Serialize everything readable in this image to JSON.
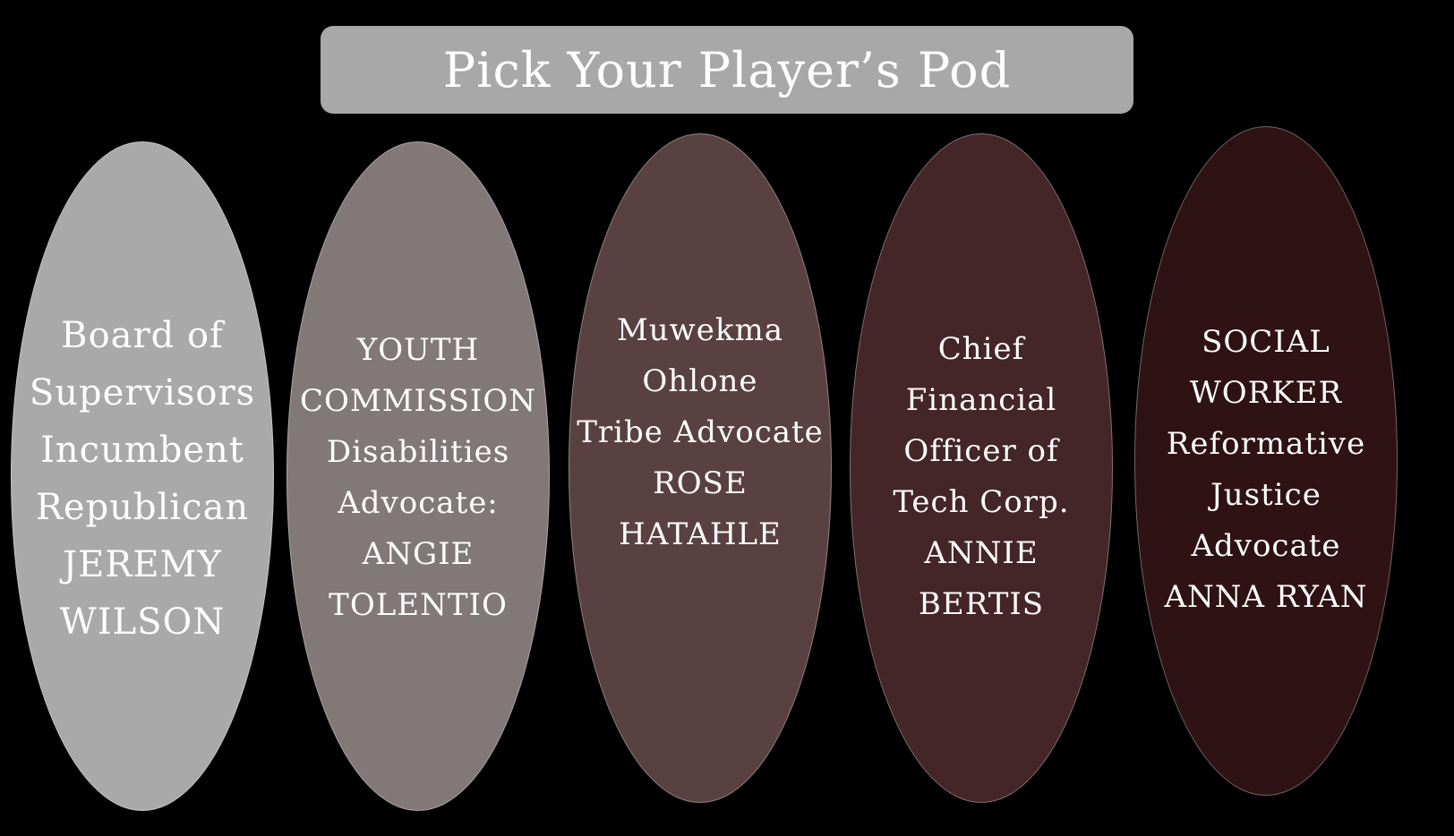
{
  "title": "Pick Your Player’s Pod",
  "colors": {
    "background": "#000000",
    "title_bar": "#a8a8a8",
    "text": "#ffffff"
  },
  "pods": [
    {
      "color": "#a9a9a9",
      "lines": [
        "Board of",
        "Supervisors",
        "Incumbent",
        "Republican",
        "JEREMY",
        "WILSON"
      ]
    },
    {
      "color": "#837878",
      "lines": [
        "YOUTH",
        "COMMISSION",
        "Disabilities",
        "Advocate:",
        "ANGIE",
        "TOLENTIO"
      ]
    },
    {
      "color": "#5a4141",
      "lines": [
        "Muwekma",
        "Ohlone",
        "Tribe Advocate",
        "ROSE",
        "HATAHLE"
      ]
    },
    {
      "color": "#442528",
      "lines": [
        "Chief",
        "Financial",
        "Officer of",
        "Tech Corp.",
        "ANNIE",
        "BERTIS"
      ]
    },
    {
      "color": "#2e1214",
      "lines": [
        "SOCIAL",
        "WORKER",
        "Reformative",
        "Justice",
        "Advocate",
        "ANNA  RYAN"
      ]
    }
  ]
}
